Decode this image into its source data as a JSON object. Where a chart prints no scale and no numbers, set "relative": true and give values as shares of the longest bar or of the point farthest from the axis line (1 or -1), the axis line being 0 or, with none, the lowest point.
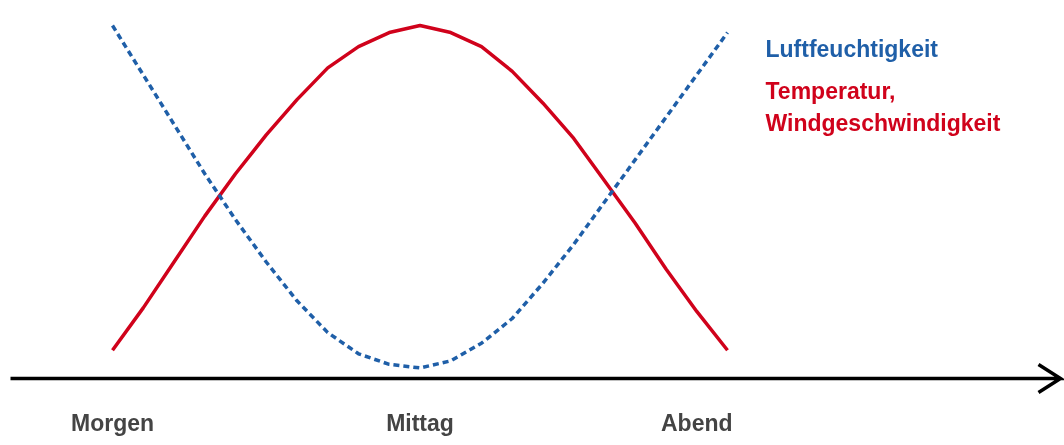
{
  "chart_data": {
    "type": "line",
    "relative": true,
    "legend": false,
    "grid": false,
    "tick_labels": "x",
    "categories": [
      "Morgen",
      null,
      null,
      null,
      null,
      null,
      null,
      null,
      null,
      null,
      "Mittag",
      null,
      null,
      null,
      null,
      null,
      null,
      null,
      null,
      "Abend",
      null
    ],
    "series": [
      {
        "name": "Temperatur,\nWindgeschwindigkeit",
        "color": "#d0021b",
        "line_style": "solid",
        "values": [
          0.08,
          0.2,
          0.33,
          0.46,
          0.58,
          0.69,
          0.79,
          0.88,
          0.94,
          0.98,
          1.0,
          0.98,
          0.94,
          0.87,
          0.78,
          0.68,
          0.56,
          0.44,
          0.31,
          0.19,
          0.08
        ]
      },
      {
        "name": "Luftfeuchtigkeit",
        "color": "#1f5fa8",
        "line_style": "dashed",
        "values": [
          1.0,
          0.86,
          0.72,
          0.58,
          0.45,
          0.33,
          0.22,
          0.13,
          0.07,
          0.04,
          0.03,
          0.05,
          0.1,
          0.17,
          0.27,
          0.38,
          0.5,
          0.62,
          0.74,
          0.86,
          0.98
        ]
      }
    ]
  }
}
